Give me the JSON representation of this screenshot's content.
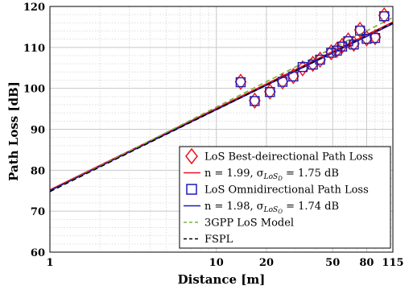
{
  "chart_data": {
    "type": "scatter",
    "xlabel": "Distance [m]",
    "ylabel": "Path Loss [dB]",
    "xscale": "log",
    "xlim": [
      1,
      115
    ],
    "ylim": [
      60,
      120
    ],
    "xticks": [
      1,
      10,
      20,
      50,
      80,
      115
    ],
    "xtick_labels": [
      "1",
      "10",
      "20",
      "50",
      "80",
      "115"
    ],
    "yticks": [
      60,
      70,
      80,
      90,
      100,
      110,
      120
    ],
    "ytick_labels": [
      "60",
      "70",
      "80",
      "90",
      "100",
      "110",
      "120"
    ],
    "grid": true,
    "legend_position": "bottom-right",
    "series": [
      {
        "name": "LoS Best-deirectional Path Loss",
        "kind": "points",
        "marker": "diamond",
        "color": "#e8151b",
        "x": [
          14,
          17,
          21,
          25,
          29,
          33,
          38,
          42,
          49,
          53,
          57,
          62,
          67,
          73,
          80,
          90,
          102
        ],
        "y": [
          101.6,
          97.0,
          99.2,
          101.7,
          103.0,
          104.9,
          106.0,
          107.0,
          108.8,
          109.4,
          110.4,
          111.7,
          110.9,
          114.3,
          112.2,
          112.5,
          117.8
        ]
      },
      {
        "name": "n = 1.99, σ_LoS_D = 1.75 dB",
        "kind": "line",
        "color": "#e8151b",
        "x": [
          1,
          115
        ],
        "y": [
          75.2,
          116.2
        ]
      },
      {
        "name": "LoS Omnidirectional Path Loss",
        "kind": "points",
        "marker": "square",
        "color": "#1a1ab8",
        "x": [
          14,
          17,
          21,
          25,
          29,
          33,
          38,
          42,
          49,
          53,
          57,
          62,
          67,
          73,
          80,
          90,
          102
        ],
        "y": [
          101.5,
          96.9,
          99.1,
          101.6,
          102.9,
          105.2,
          105.8,
          107.0,
          108.7,
          109.2,
          110.2,
          111.5,
          110.7,
          114.1,
          112.1,
          112.3,
          117.6
        ]
      },
      {
        "name": "n = 1.98, σ_LoS_O = 1.74 dB",
        "kind": "line",
        "color": "#1a1ab8",
        "x": [
          1,
          115
        ],
        "y": [
          75.0,
          115.8
        ]
      },
      {
        "name": "3GPP LoS Model",
        "kind": "dashed",
        "color": "#7ab33a",
        "x": [
          1,
          115
        ],
        "y": [
          74.8,
          117.3
        ]
      },
      {
        "name": "FSPL",
        "kind": "dashed",
        "color": "#000000",
        "x": [
          1,
          115
        ],
        "y": [
          74.8,
          116.0
        ]
      }
    ],
    "legend": {
      "entries": [
        {
          "text": "LoS Best-deirectional Path Loss"
        },
        {
          "pre": "n = 1.99, σ",
          "sub1": "LoS",
          "sub2": "D",
          "post": " = 1.75 dB"
        },
        {
          "text": "LoS Omnidirectional Path Loss"
        },
        {
          "pre": "n = 1.98, σ",
          "sub1": "LoS",
          "sub2": "O",
          "post": " = 1.74 dB"
        },
        {
          "text": "3GPP LoS Model"
        },
        {
          "text": "FSPL"
        }
      ]
    }
  }
}
